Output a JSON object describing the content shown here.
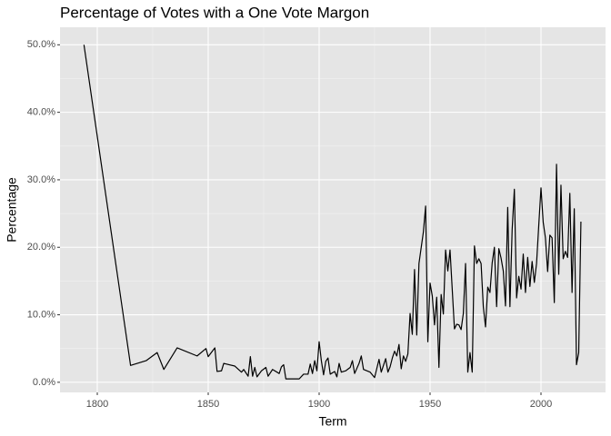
{
  "chart_data": {
    "type": "line",
    "title": "Percentage of Votes with a One Vote Margon",
    "x_label": "Term",
    "y_label": "Percentage",
    "x": [
      1794,
      1815,
      1822,
      1827,
      1830,
      1836,
      1845,
      1849,
      1850,
      1853,
      1854,
      1856,
      1857,
      1862,
      1865,
      1866,
      1868,
      1869,
      1870,
      1871,
      1872,
      1874,
      1876,
      1877,
      1879,
      1882,
      1883,
      1884,
      1885,
      1891,
      1893,
      1895,
      1896,
      1897,
      1898,
      1899,
      1900,
      1901,
      1902,
      1903,
      1904,
      1905,
      1907,
      1908,
      1909,
      1910,
      1912,
      1914,
      1915,
      1916,
      1918,
      1919,
      1920,
      1923,
      1925,
      1927,
      1928,
      1930,
      1931,
      1932,
      1933,
      1934,
      1935,
      1936,
      1937,
      1938,
      1939,
      1940,
      1941,
      1942,
      1943,
      1944,
      1945,
      1947,
      1948,
      1949,
      1950,
      1951,
      1952,
      1953,
      1954,
      1955,
      1956,
      1957,
      1958,
      1959,
      1961,
      1962,
      1963,
      1964,
      1965,
      1966,
      1967,
      1968,
      1969,
      1970,
      1971,
      1972,
      1973,
      1974,
      1975,
      1976,
      1977,
      1978,
      1979,
      1980,
      1981,
      1982,
      1983,
      1984,
      1985,
      1986,
      1987,
      1988,
      1989,
      1990,
      1991,
      1992,
      1993,
      1994,
      1995,
      1996,
      1997,
      1998,
      1999,
      2000,
      2001,
      2002,
      2003,
      2004,
      2005,
      2006,
      2007,
      2008,
      2009,
      2010,
      2011,
      2012,
      2013,
      2014,
      2015,
      2016,
      2017,
      2018
    ],
    "values": [
      50,
      2.5,
      3.2,
      4.4,
      1.9,
      5.1,
      3.9,
      5.0,
      3.8,
      5.1,
      1.6,
      1.7,
      2.8,
      2.4,
      1.5,
      1.9,
      0.9,
      3.8,
      0.9,
      2.2,
      0.8,
      1.7,
      2.2,
      0.9,
      1.9,
      1.3,
      2.3,
      2.6,
      0.5,
      0.5,
      1.2,
      1.2,
      2.7,
      1.3,
      3.2,
      1.7,
      6.0,
      3.2,
      1.1,
      3.1,
      3.6,
      1.2,
      1.6,
      0.8,
      2.8,
      1.5,
      1.7,
      2.2,
      3.2,
      1.3,
      2.8,
      3.9,
      1.9,
      1.5,
      0.7,
      3.4,
      1.5,
      3.5,
      1.5,
      2.3,
      3.6,
      4.6,
      3.9,
      5.6,
      2.0,
      3.9,
      3.1,
      4.2,
      10.2,
      7.1,
      16.7,
      7.0,
      17.6,
      22.3,
      26.1,
      6.0,
      14.7,
      12.8,
      8.5,
      12.6,
      2.2,
      13.0,
      10.1,
      19.6,
      16.5,
      19.6,
      7.9,
      8.6,
      8.5,
      7.8,
      10.2,
      17.6,
      1.5,
      4.4,
      1.5,
      20.2,
      17.6,
      18.3,
      17.6,
      11.2,
      8.2,
      14.1,
      13.3,
      17.7,
      20.0,
      11.2,
      19.8,
      18.4,
      16.5,
      11.3,
      25.9,
      11.2,
      22.6,
      28.6,
      12.5,
      15.7,
      13.8,
      19.0,
      13.3,
      18.5,
      14.2,
      17.9,
      14.8,
      17.6,
      23.3,
      28.8,
      23.7,
      21.4,
      16.4,
      21.8,
      21.4,
      11.8,
      32.3,
      16.0,
      29.2,
      18.3,
      19.4,
      18.5,
      28.0,
      13.3,
      25.7,
      2.6,
      4.4,
      23.8
    ],
    "color": "#000000",
    "xlim": [
      1783.2,
      2029.1
    ],
    "xticks": [
      1800,
      1850,
      1900,
      1950,
      2000
    ],
    "ylim": [
      -1.5,
      52.6
    ],
    "yticks": [
      {
        "value": 0,
        "label": "0.0%"
      },
      {
        "value": 10,
        "label": "10.0%"
      },
      {
        "value": 20,
        "label": "20.0%"
      },
      {
        "value": 30,
        "label": "30.0%"
      },
      {
        "value": 40,
        "label": "40.0%"
      },
      {
        "value": 50,
        "label": "50.0%"
      }
    ],
    "grid": true
  }
}
